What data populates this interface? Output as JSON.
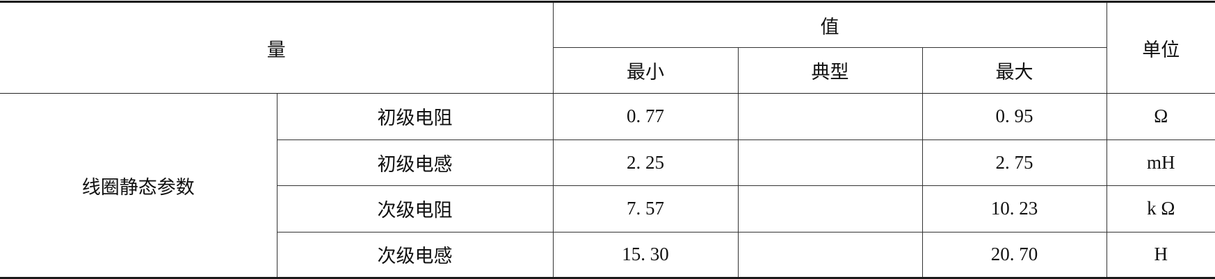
{
  "header": {
    "quantity": "量",
    "value": "值",
    "unit": "单位",
    "min": "最小",
    "typical": "典型",
    "max": "最大"
  },
  "group_label": "线圈静态参数",
  "rows": [
    {
      "name": "初级电阻",
      "min": "0. 77",
      "typical": "",
      "max": "0. 95",
      "unit": "Ω"
    },
    {
      "name": "初级电感",
      "min": "2. 25",
      "typical": "",
      "max": "2. 75",
      "unit": "mH"
    },
    {
      "name": "次级电阻",
      "min": "7. 57",
      "typical": "",
      "max": "10. 23",
      "unit": "k Ω"
    },
    {
      "name": "次级电感",
      "min": "15. 30",
      "typical": "",
      "max": "20. 70",
      "unit": "H"
    }
  ]
}
